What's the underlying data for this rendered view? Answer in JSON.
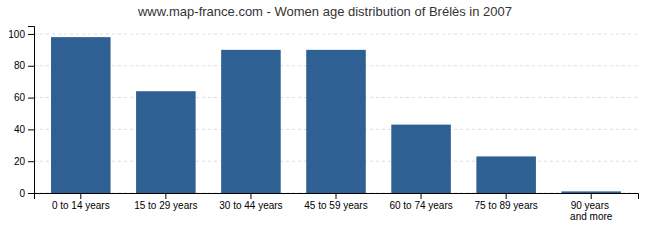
{
  "chart_data": {
    "type": "bar",
    "title": "www.map-france.com - Women age distribution of Brélès in 2007",
    "categories": [
      "0 to 14 years",
      "15 to 29 years",
      "30 to 44 years",
      "45 to 59 years",
      "60 to 74 years",
      "75 to 89 years",
      "90 years and more"
    ],
    "values": [
      98,
      64,
      90,
      90,
      43,
      23,
      1
    ],
    "color": "#2e6093",
    "ylim": [
      0,
      105
    ],
    "yticks": [
      0,
      20,
      40,
      60,
      80,
      100
    ],
    "grid": true
  }
}
